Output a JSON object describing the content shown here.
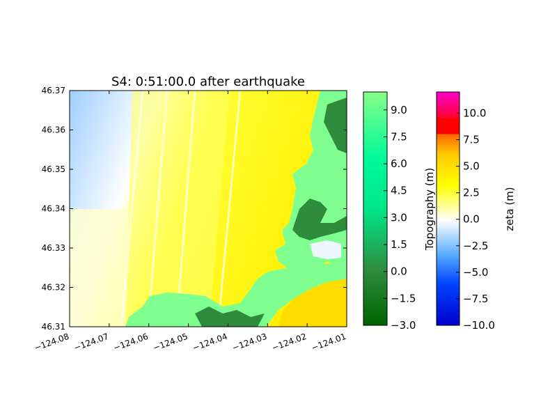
{
  "chart_data": {
    "type": "heatmap",
    "title": "S4: 0:51:00.0 after earthquake",
    "xlim": [
      -124.08,
      -124.01
    ],
    "ylim": [
      46.31,
      46.37
    ],
    "x_ticks": [
      "−124.08",
      "−124.07",
      "−124.06",
      "−124.05",
      "−124.04",
      "−124.03",
      "−124.02",
      "−124.01"
    ],
    "y_ticks": [
      "46.31",
      "46.32",
      "46.33",
      "46.34",
      "46.35",
      "46.36",
      "46.37"
    ],
    "colorbars": [
      {
        "label": "Topography (m)",
        "range": [
          -3.0,
          10.0
        ],
        "ticks": [
          "−3.0",
          "−1.5",
          "0.0",
          "1.5",
          "3.0",
          "4.5",
          "6.0",
          "7.5",
          "9.0"
        ],
        "tick_values": [
          -3.0,
          -1.5,
          0.0,
          1.5,
          3.0,
          4.5,
          6.0,
          7.5,
          9.0
        ],
        "colors": [
          "#006400",
          "#3cb371",
          "#00fa9a",
          "#7fff8f"
        ]
      },
      {
        "label": "zeta (m)",
        "range": [
          -10.0,
          12.0
        ],
        "ticks": [
          "−10.0",
          "−7.5",
          "−5.0",
          "−2.5",
          "0.0",
          "2.5",
          "5.0",
          "7.5",
          "10.0"
        ],
        "tick_values": [
          -10.0,
          -7.5,
          -5.0,
          -2.5,
          0.0,
          2.5,
          5.0,
          7.5,
          10.0
        ],
        "colors": [
          "#0000cc",
          "#0066ff",
          "#66aaff",
          "#ffffff",
          "#ffff00",
          "#ffcc00",
          "#ff6600",
          "#ff0000",
          "#ff00cc"
        ]
      }
    ]
  }
}
